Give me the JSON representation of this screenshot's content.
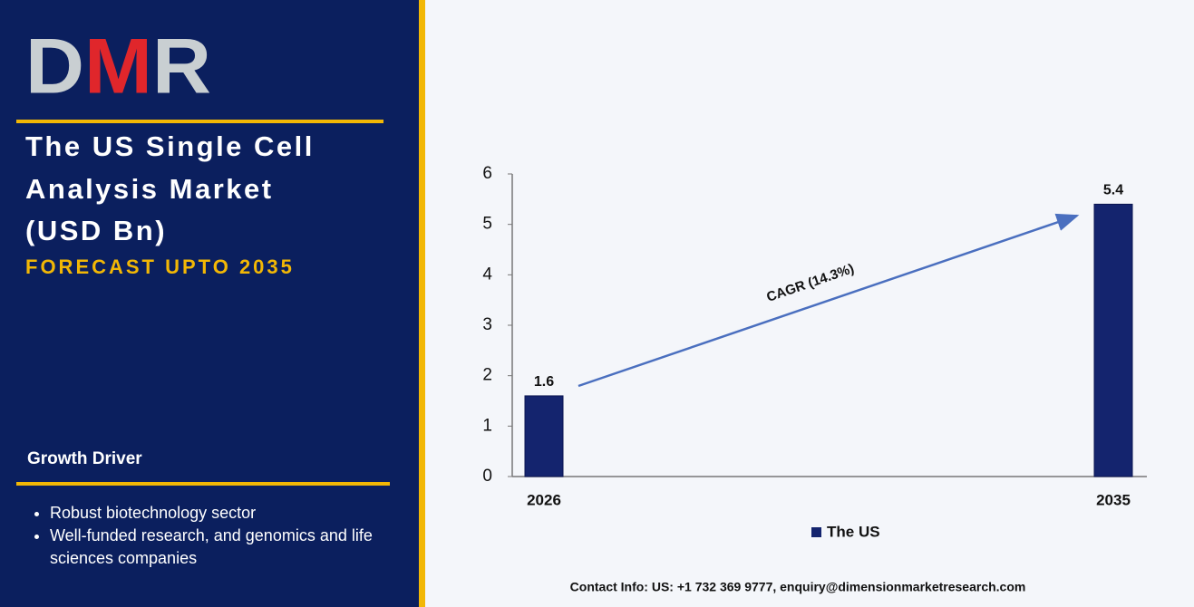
{
  "logo": "DMR",
  "title_lines": [
    "The US Single Cell",
    "Analysis Market",
    "(USD Bn)"
  ],
  "subtitle": "FORECAST UPTO 2035",
  "growth_driver": {
    "heading": "Growth Driver",
    "items": [
      "Robust biotechnology sector",
      "Well-funded research, and genomics and life sciences companies"
    ]
  },
  "contact": "Contact Info: US: +1 732 369 9777, enquiry@dimensionmarketresearch.com",
  "chart_data": {
    "type": "bar",
    "categories": [
      "2026",
      "2035"
    ],
    "series": [
      {
        "name": "The US",
        "color": "#14246e",
        "values": [
          1.6,
          5.4
        ]
      }
    ],
    "ylim": [
      0,
      6
    ],
    "yticks": [
      0,
      1,
      2,
      3,
      4,
      5,
      6
    ],
    "annotation": "CAGR (14.3%)"
  }
}
